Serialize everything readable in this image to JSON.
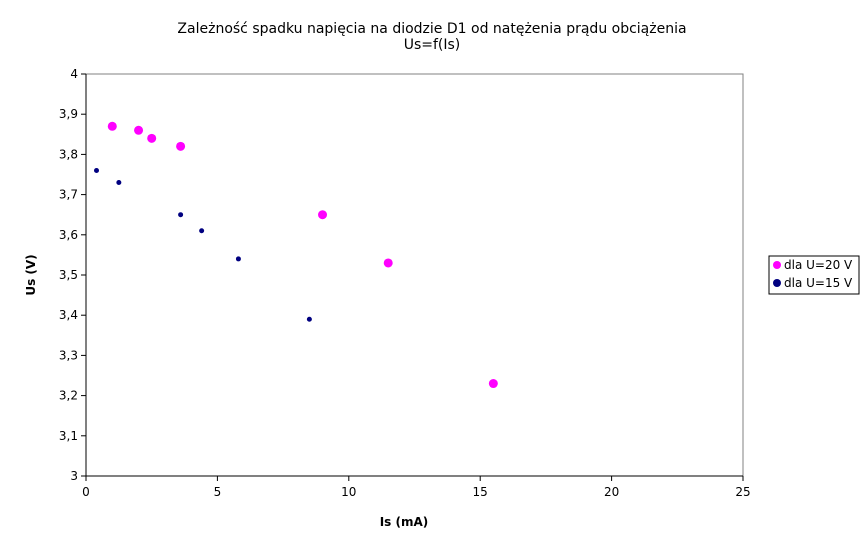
{
  "chart_data": {
    "type": "scatter",
    "title": "Zależność spadku napięcia na diodzie D1 od natężenia prądu obciążenia",
    "subtitle": "Us=f(Is)",
    "xlabel": "Is (mA)",
    "ylabel": "Us (V)",
    "xlim": [
      0,
      25
    ],
    "ylim": [
      3,
      4
    ],
    "x_ticks": [
      "0",
      "5",
      "10",
      "15",
      "20",
      "25"
    ],
    "y_ticks": [
      "3",
      "3,1",
      "3,2",
      "3,3",
      "3,4",
      "3,5",
      "3,6",
      "3,7",
      "3,8",
      "3,9",
      "4"
    ],
    "grid": false,
    "legend_position": "right",
    "series": [
      {
        "name": "dla U=20 V",
        "color": "#ff00ff",
        "marker": "circle-large",
        "points": [
          [
            1.0,
            3.87
          ],
          [
            2.0,
            3.86
          ],
          [
            2.5,
            3.84
          ],
          [
            3.6,
            3.82
          ],
          [
            9.0,
            3.65
          ],
          [
            11.5,
            3.53
          ],
          [
            15.5,
            3.23
          ]
        ]
      },
      {
        "name": "dla U=15 V",
        "color": "#000080",
        "marker": "circle-small",
        "points": [
          [
            0.4,
            3.76
          ],
          [
            1.25,
            3.73
          ],
          [
            3.6,
            3.65
          ],
          [
            4.4,
            3.61
          ],
          [
            5.8,
            3.54
          ],
          [
            8.5,
            3.39
          ]
        ]
      }
    ]
  }
}
